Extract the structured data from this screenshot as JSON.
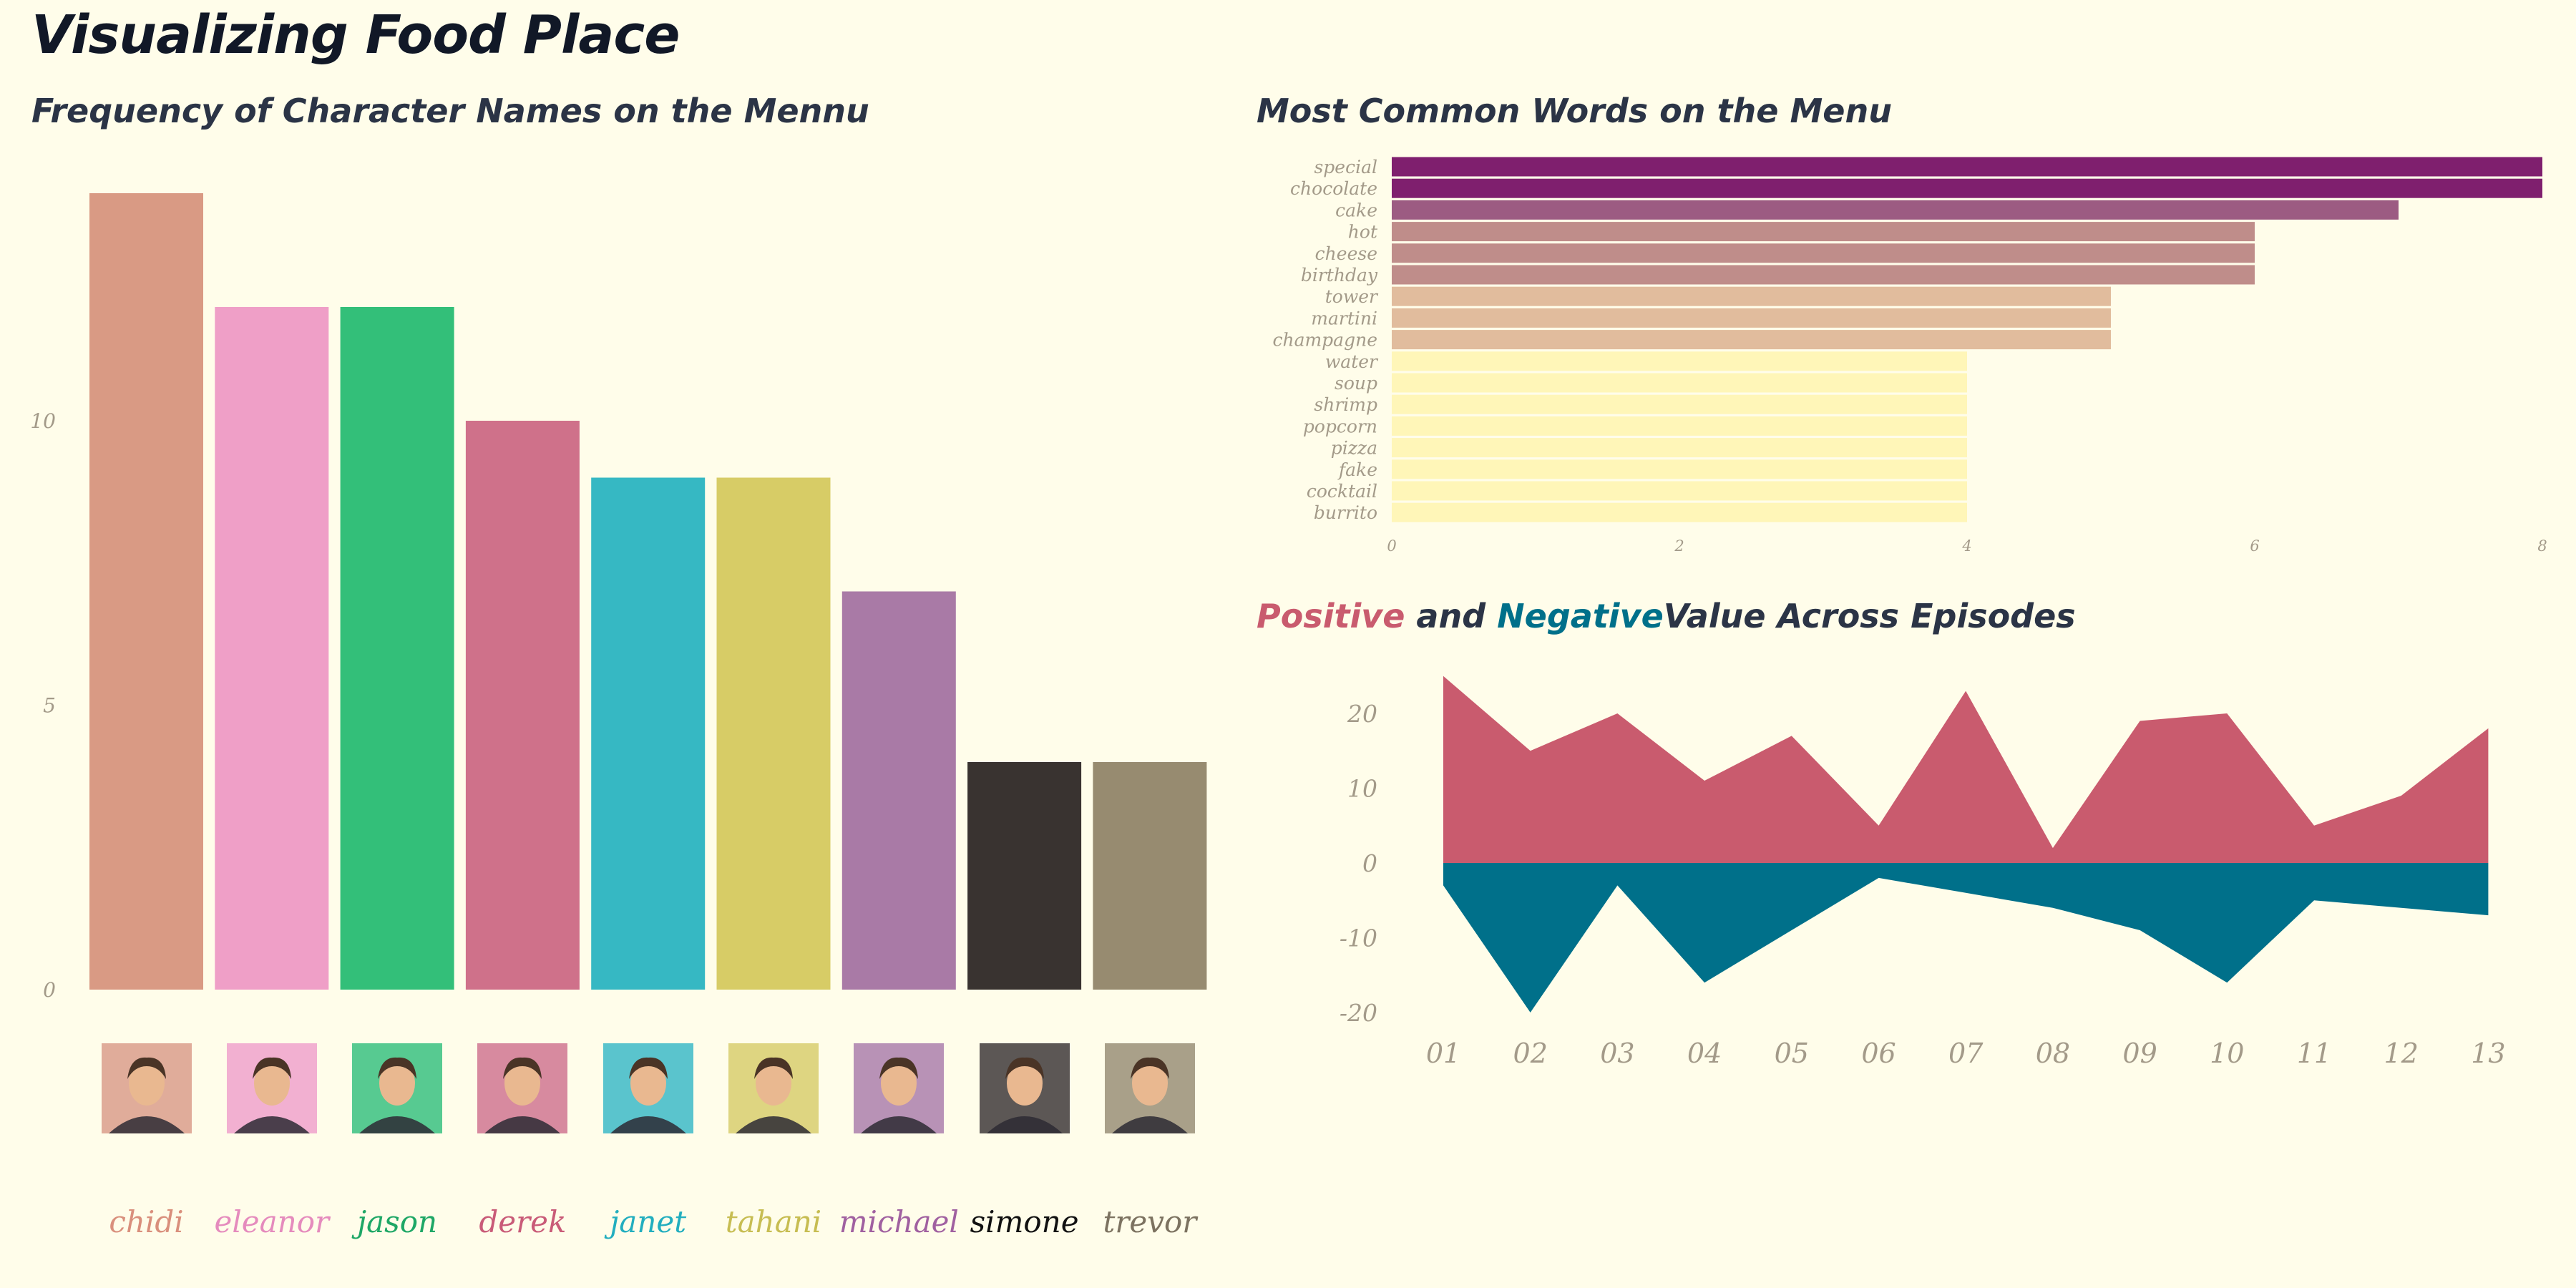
{
  "page_title": "Visualizing Food Place",
  "colors": {
    "background": "#fffdea",
    "positive": "#c95b6e",
    "negative": "#00708a",
    "title_dark": "#2b3446",
    "tick": "#a39a89"
  },
  "chart_data": [
    {
      "type": "bar",
      "title": "Frequency of Character Names on the Mennu",
      "categories": [
        "chidi",
        "eleanor",
        "jason",
        "derek",
        "janet",
        "tahani",
        "michael",
        "simone",
        "trevor"
      ],
      "values": [
        14,
        12,
        12,
        10,
        9,
        9,
        7,
        4,
        4
      ],
      "bar_colors": [
        "#d99a84",
        "#ef9fc7",
        "#33bf79",
        "#cf718a",
        "#36b8c3",
        "#d7cc66",
        "#a97aa6",
        "#393330",
        "#978b70"
      ],
      "name_colors": [
        "#d98f7c",
        "#e58bbd",
        "#1ea766",
        "#c95b78",
        "#22aebf",
        "#c7bd52",
        "#a060a0",
        "#111111",
        "#7c7260"
      ],
      "portrait_icons": [
        "chidi-portrait-icon",
        "eleanor-portrait-icon",
        "jason-portrait-icon",
        "derek-portrait-icon",
        "janet-portrait-icon",
        "tahani-portrait-icon",
        "michael-portrait-icon",
        "simone-portrait-icon",
        "trevor-portrait-icon"
      ],
      "ylim": [
        0,
        15
      ],
      "yticks": [
        "0",
        "5",
        "10"
      ],
      "ytick_values": [
        0,
        5,
        10
      ],
      "xlabel": "",
      "ylabel": ""
    },
    {
      "type": "bar",
      "orientation": "horizontal",
      "title": "Most Common Words on the Menu",
      "categories": [
        "special",
        "chocolate",
        "cake",
        "hot",
        "cheese",
        "birthday",
        "tower",
        "martini",
        "champagne",
        "water",
        "soup",
        "shrimp",
        "popcorn",
        "pizza",
        "fake",
        "cocktail",
        "burrito"
      ],
      "values": [
        8,
        8,
        7,
        6,
        6,
        6,
        5,
        5,
        5,
        4,
        4,
        4,
        4,
        4,
        4,
        4,
        4
      ],
      "value_colors": {
        "8": "#7f1f6e",
        "7": "#9c5b82",
        "6": "#bf8d8a",
        "5": "#e1bc9d",
        "4": "#fff6b8"
      },
      "xlim": [
        0,
        8
      ],
      "xticks": [
        "0",
        "2",
        "4",
        "6",
        "8"
      ],
      "xtick_values": [
        0,
        2,
        4,
        6,
        8
      ]
    },
    {
      "type": "area",
      "title": {
        "positive_word": "Positive",
        "and_word": "and",
        "negative_word": "Negative",
        "rest": "Value  Across Episodes"
      },
      "categories": [
        "01",
        "02",
        "03",
        "04",
        "05",
        "06",
        "07",
        "08",
        "09",
        "10",
        "11",
        "12",
        "13"
      ],
      "series": [
        {
          "name": "Positive",
          "values": [
            25,
            15,
            20,
            11,
            17,
            5,
            23,
            2,
            19,
            20,
            5,
            9,
            18
          ]
        },
        {
          "name": "Negative",
          "values": [
            -3,
            -20,
            -3,
            -16,
            -9,
            -2,
            -4,
            -6,
            -9,
            -16,
            -5,
            -6,
            -7
          ]
        }
      ],
      "ylim": [
        -22,
        26
      ],
      "yticks": [
        "20",
        "10",
        "0",
        "-10",
        "-20"
      ],
      "ytick_values": [
        20,
        10,
        0,
        -10,
        -20
      ]
    }
  ]
}
